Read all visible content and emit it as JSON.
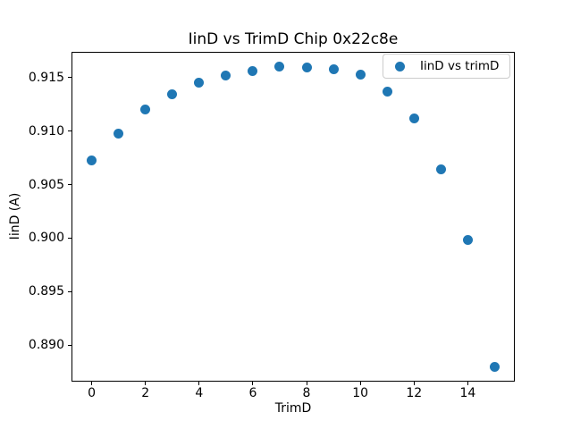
{
  "chart_data": {
    "type": "scatter",
    "title": "IinD vs TrimD Chip 0x22c8e",
    "xlabel": "TrimD",
    "ylabel": "IinD (A)",
    "legend": {
      "label": "IinD vs trimD",
      "position": "upper right"
    },
    "marker_color": "#1f77b4",
    "x": [
      0,
      1,
      2,
      3,
      4,
      5,
      6,
      7,
      8,
      9,
      10,
      11,
      12,
      13,
      14,
      15
    ],
    "y": [
      0.9073,
      0.9098,
      0.912,
      0.9134,
      0.9145,
      0.9152,
      0.9156,
      0.916,
      0.9159,
      0.9158,
      0.9153,
      0.9137,
      0.9112,
      0.9064,
      0.8998,
      0.888
    ],
    "xticks": [
      0,
      2,
      4,
      6,
      8,
      10,
      12,
      14
    ],
    "yticks": [
      0.89,
      0.895,
      0.9,
      0.905,
      0.91,
      0.915
    ],
    "ytick_decimals": 3,
    "xlim": [
      -0.75,
      15.75
    ],
    "ylim": [
      0.8866,
      0.9174
    ],
    "grid": false,
    "axes_facecolor": "#ffffff",
    "figure_facecolor": "#ffffff",
    "spine_color": "#000000"
  }
}
